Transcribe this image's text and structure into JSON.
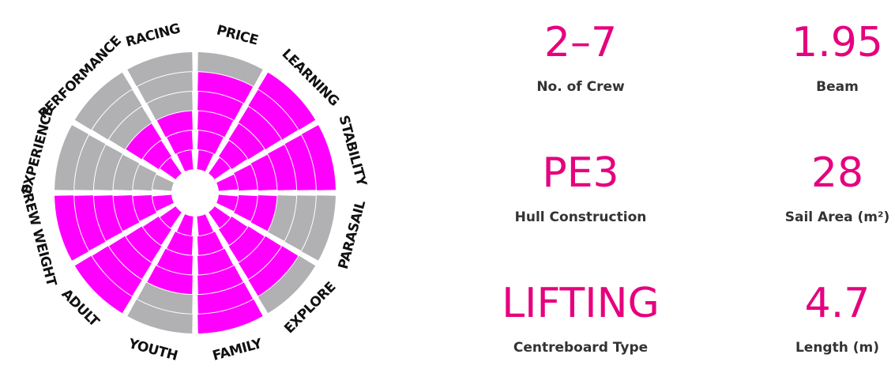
{
  "chart_data": {
    "type": "radial-bar",
    "levels": 6,
    "categories": [
      "PRICE",
      "LEARNING",
      "STABILITY",
      "PARASAIL",
      "EXPLORE",
      "FAMILY",
      "YOUTH",
      "ADULT",
      "CREW WEIGHT",
      "EXPERIENCE",
      "PERFORMANCE",
      "RACING"
    ],
    "values": [
      5,
      6,
      6,
      3,
      5,
      6,
      4,
      6,
      6,
      0,
      3,
      3
    ],
    "colors": {
      "filled": "#ff00ff",
      "empty": "#b1b1b3",
      "ring": "#ffffff",
      "text": "#111111"
    }
  },
  "specs": [
    {
      "value": "2–7",
      "label": "No. of Crew"
    },
    {
      "value": "1.95",
      "label": "Beam"
    },
    {
      "value": "PE3",
      "label": "Hull Construction"
    },
    {
      "value": "28",
      "label": "Sail Area (m²)"
    },
    {
      "value": "LIFTING",
      "label": "Centreboard Type"
    },
    {
      "value": "4.7",
      "label": "Length (m)"
    }
  ]
}
